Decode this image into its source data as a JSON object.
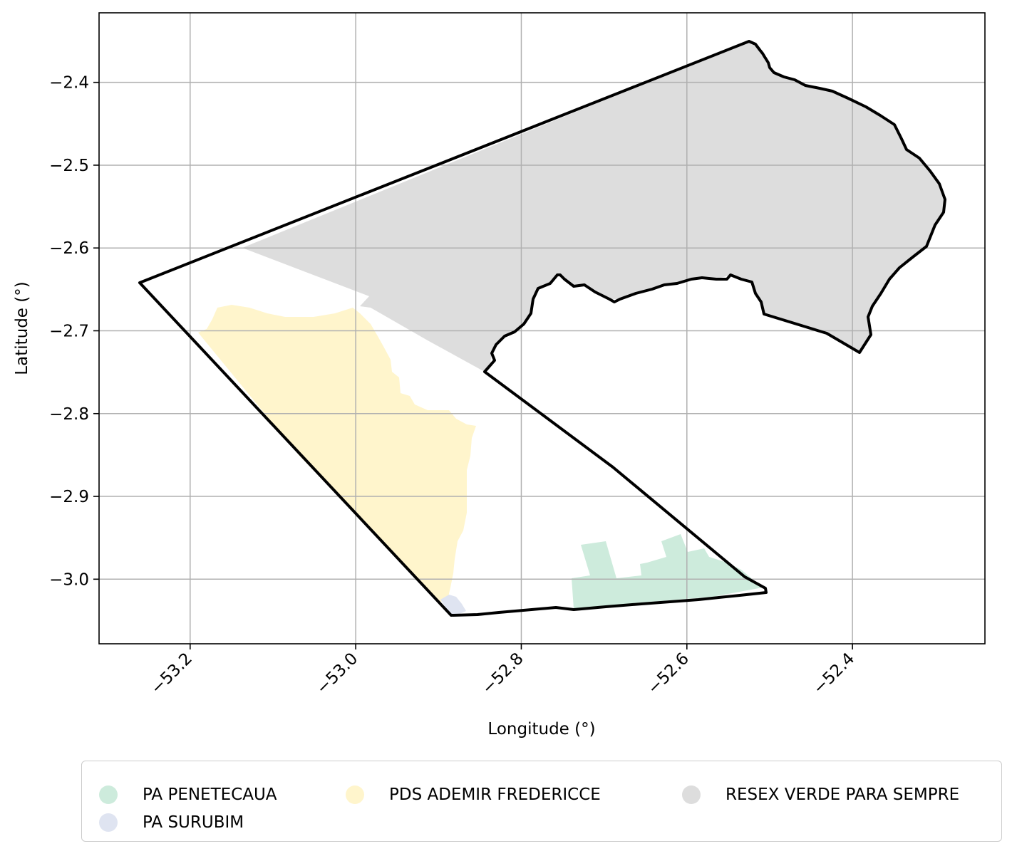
{
  "chart_data": {
    "type": "map",
    "xlabel": "Longitude (°)",
    "ylabel": "Latitude (°)",
    "xlim": [
      -53.31,
      -52.24
    ],
    "ylim": [
      -3.078,
      -2.316
    ],
    "x_ticks": [
      -53.2,
      -53.0,
      -52.8,
      -52.6,
      -52.4
    ],
    "x_tick_labels": [
      "−53.2",
      "−53.0",
      "−52.8",
      "−52.6",
      "−52.4"
    ],
    "y_ticks": [
      -2.4,
      -2.5,
      -2.6,
      -2.7,
      -2.8,
      -2.9,
      -3.0
    ],
    "y_tick_labels": [
      "−2.4",
      "−2.5",
      "−2.6",
      "−2.7",
      "−2.8",
      "−2.9",
      "−3.0"
    ],
    "grid": true,
    "legend_position": "bottom",
    "boundary_color": "#000000",
    "regions": [
      {
        "name": "PA PENETECAUA",
        "color": "#cdebdc"
      },
      {
        "name": "PA SURUBIM",
        "color": "#dfe4f1"
      },
      {
        "name": "PDS ADEMIR FREDERICCE",
        "color": "#fff5cc"
      },
      {
        "name": "RESEX VERDE PARA SEMPRE",
        "color": "#dddddd"
      }
    ]
  },
  "legend": {
    "items": [
      {
        "label": "PA PENETECAUA",
        "color": "#cdebdc"
      },
      {
        "label": "PDS ADEMIR FREDERICCE",
        "color": "#fff5cc"
      },
      {
        "label": "RESEX VERDE PARA SEMPRE",
        "color": "#dddddd"
      },
      {
        "label": "PA SURUBIM",
        "color": "#dfe4f1"
      }
    ]
  }
}
